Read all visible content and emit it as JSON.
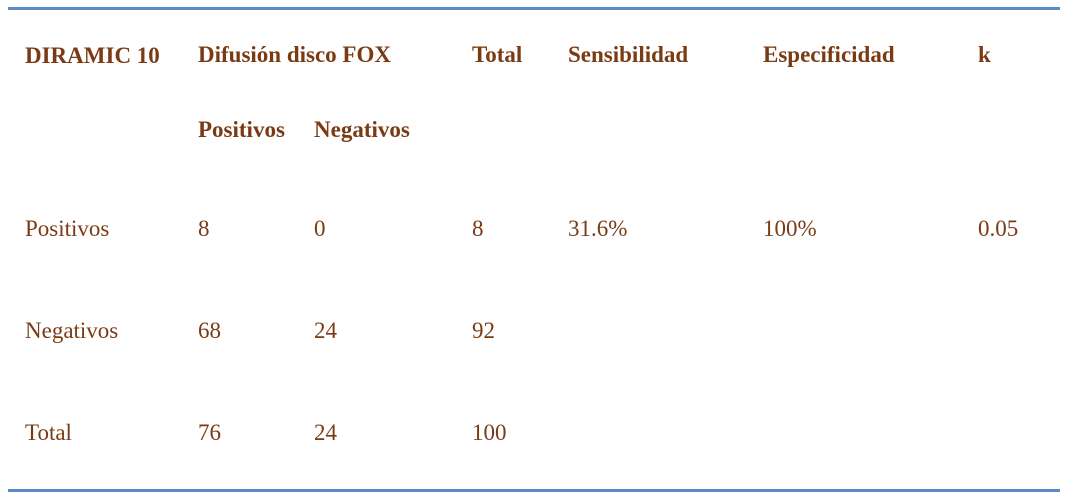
{
  "table": {
    "header": {
      "col_diramic": "DIRAMIC 10",
      "col_difusion": "Difusión disco FOX",
      "col_total": "Total",
      "col_sens": "Sensibilidad",
      "col_espec": "Especificidad",
      "col_k": "k",
      "sub_positivos": "Positivos",
      "sub_negativos": "Negativos"
    },
    "rows": [
      {
        "label": "Positivos",
        "pos": "8",
        "neg": "0",
        "total": "8",
        "sens": "31.6%",
        "espec": "100%",
        "k": "0.05"
      },
      {
        "label": "Negativos",
        "pos": "68",
        "neg": "24",
        "total": "92",
        "sens": "",
        "espec": "",
        "k": ""
      },
      {
        "label": "Total",
        "pos": "76",
        "neg": "24",
        "total": "100",
        "sens": "",
        "espec": "",
        "k": ""
      }
    ]
  },
  "colors": {
    "text": "#7a3b14",
    "rule": "#5b8bc6"
  }
}
